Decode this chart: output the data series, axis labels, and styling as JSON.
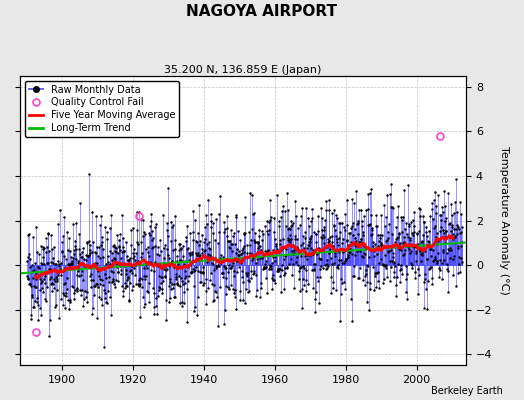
{
  "title": "NAGOYA AIRPORT",
  "subtitle": "35.200 N, 136.859 E (Japan)",
  "ylabel": "Temperature Anomaly (°C)",
  "xlabel_note": "Berkeley Earth",
  "xlim": [
    1888,
    2014
  ],
  "ylim": [
    -4.5,
    8.5
  ],
  "yticks": [
    -4,
    -2,
    0,
    2,
    4,
    6,
    8
  ],
  "xticks": [
    1900,
    1920,
    1940,
    1960,
    1980,
    2000
  ],
  "start_year": 1890,
  "end_year": 2012,
  "background_color": "#e8e8e8",
  "plot_bg_color": "#ffffff",
  "line_color": "#4444ff",
  "dot_color": "#000000",
  "moving_avg_color": "#ff0000",
  "trend_color": "#00bb00",
  "qc_fail_color": "#ff44cc",
  "trend_slope": 0.011,
  "trend_intercept": -0.35,
  "noise_std": 1.1,
  "seed": 42,
  "qc_points": [
    [
      1892.5,
      -3.0
    ],
    [
      1921.5,
      2.2
    ],
    [
      2006.5,
      5.8
    ]
  ]
}
